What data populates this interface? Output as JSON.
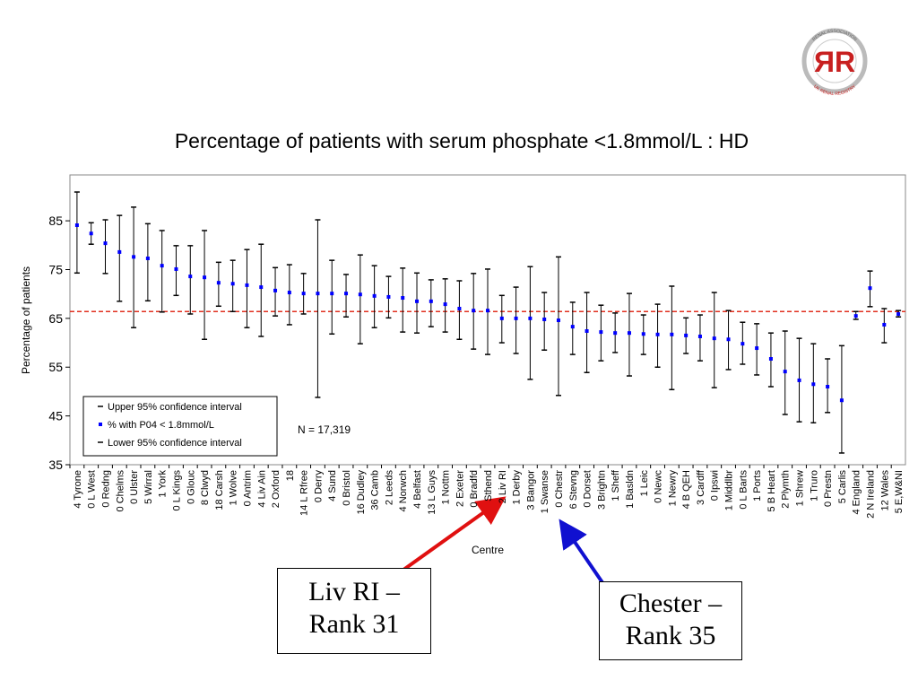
{
  "chart_data": {
    "type": "errorbar",
    "title": "Percentage of patients with serum phosphate <1.8mmol/L : HD",
    "y_label": "Percentage of patients",
    "x_label": "Centre",
    "annotation": "N = 17,319",
    "callouts": [
      "Liv RI – Rank 31",
      "Chester – Rank 35"
    ],
    "logo": {
      "text": "ЯR",
      "ring_top": "RENAL ASSOCIATION",
      "ring_bottom": "UK RENAL REGISTRY"
    },
    "categories": [
      "4 Tyrone",
      "0 L West",
      "0 Redng",
      "0 Chelms",
      "0 Ulster",
      "5 Wirral",
      "1 York",
      "0 L Kings",
      "0 Glouc",
      "8 Clwyd",
      "18 Carsh",
      "1 Wolve",
      "0 Antrim",
      "4 Liv Ain",
      "2 Oxford",
      "18",
      "14 L Rfree",
      "0 Derry",
      "4 Sund",
      "0 Bristol",
      "16 Dudley",
      "36 Camb",
      "2 Leeds",
      "4 Norwch",
      "4 Belfast",
      "13 L Guys",
      "1 Nottm",
      "2 Exeter",
      "0 Bradfd",
      "Sthend",
      "2 Liv RI",
      "1 Derby",
      "3 Bangor",
      "1 Swanse",
      "0 Chestr",
      "6 Stevng",
      "0 Dorset",
      "3 Brightn",
      "1 Sheff",
      "1 Basldn",
      "1 Leic",
      "0 Newc",
      "1 Newry",
      "4 B QEH",
      "3 Cardff",
      "0 Ipswi",
      "1 Middlbr",
      "0 L Barts",
      "1 Ports",
      "5 B Heart",
      "2 Plymth",
      "1 Shrew",
      "1 Truro",
      "0 Prestn",
      "5 Carlis",
      "4 England",
      "2 N Ireland",
      "12 Wales",
      "5 E,W&NI"
    ],
    "series": [
      {
        "name": "Upper 95% confidence interval",
        "color": "#000000",
        "values": [
          90.9,
          84.6,
          85.2,
          86.1,
          87.8,
          84.4,
          83.0,
          79.9,
          79.9,
          83.0,
          76.5,
          76.9,
          79.1,
          80.2,
          75.4,
          76.0,
          74.2,
          85.2,
          76.9,
          74.0,
          78.0,
          75.8,
          73.6,
          75.3,
          74.3,
          72.9,
          73.1,
          72.7,
          74.2,
          75.1,
          69.7,
          71.4,
          75.6,
          70.3,
          77.6,
          68.3,
          70.3,
          67.7,
          66.1,
          70.1,
          65.7,
          67.9,
          71.6,
          65.1,
          65.7,
          70.3,
          66.6,
          64.2,
          63.9,
          62.0,
          62.4,
          60.9,
          59.8,
          56.7,
          59.4,
          66.4,
          74.7,
          67.0,
          66.6
        ]
      },
      {
        "name": "% with P04 < 1.8mmol/L",
        "color": "#0000ff",
        "values": [
          84.1,
          82.4,
          80.4,
          78.6,
          77.6,
          77.3,
          75.8,
          75.1,
          73.6,
          73.4,
          72.3,
          72.1,
          71.8,
          71.4,
          70.7,
          70.3,
          70.1,
          70.1,
          70.1,
          70.1,
          69.9,
          69.6,
          69.4,
          69.2,
          68.5,
          68.5,
          67.9,
          67.0,
          66.6,
          66.6,
          65.0,
          65.0,
          65.0,
          64.8,
          64.6,
          63.3,
          62.4,
          62.2,
          62.0,
          62.0,
          61.8,
          61.7,
          61.7,
          61.5,
          61.3,
          60.9,
          60.7,
          59.8,
          58.9,
          56.7,
          54.1,
          52.3,
          51.5,
          51.0,
          48.2,
          65.5,
          71.2,
          63.7,
          65.9
        ]
      },
      {
        "name": "Lower 95% confidence interval",
        "color": "#000000",
        "values": [
          74.3,
          80.2,
          74.2,
          68.5,
          63.1,
          68.6,
          66.3,
          69.7,
          65.9,
          60.7,
          67.5,
          66.4,
          63.1,
          61.3,
          65.5,
          63.7,
          65.9,
          48.8,
          61.8,
          65.3,
          59.8,
          63.1,
          65.1,
          62.2,
          62.0,
          63.3,
          62.2,
          60.7,
          58.7,
          57.6,
          60.0,
          57.8,
          52.5,
          58.5,
          49.2,
          57.6,
          53.9,
          56.3,
          58.0,
          53.2,
          57.6,
          55.0,
          50.4,
          57.8,
          56.3,
          50.8,
          54.5,
          55.6,
          53.4,
          51.0,
          45.3,
          43.8,
          43.6,
          45.7,
          37.4,
          64.8,
          67.4,
          60.0,
          65.3
        ]
      }
    ],
    "reference_line": {
      "value": 66.4,
      "color": "#e03020"
    },
    "ylim": [
      35,
      94.4
    ],
    "yticks": [
      35,
      45,
      55,
      65,
      75,
      85
    ],
    "legend": "lower-left"
  }
}
